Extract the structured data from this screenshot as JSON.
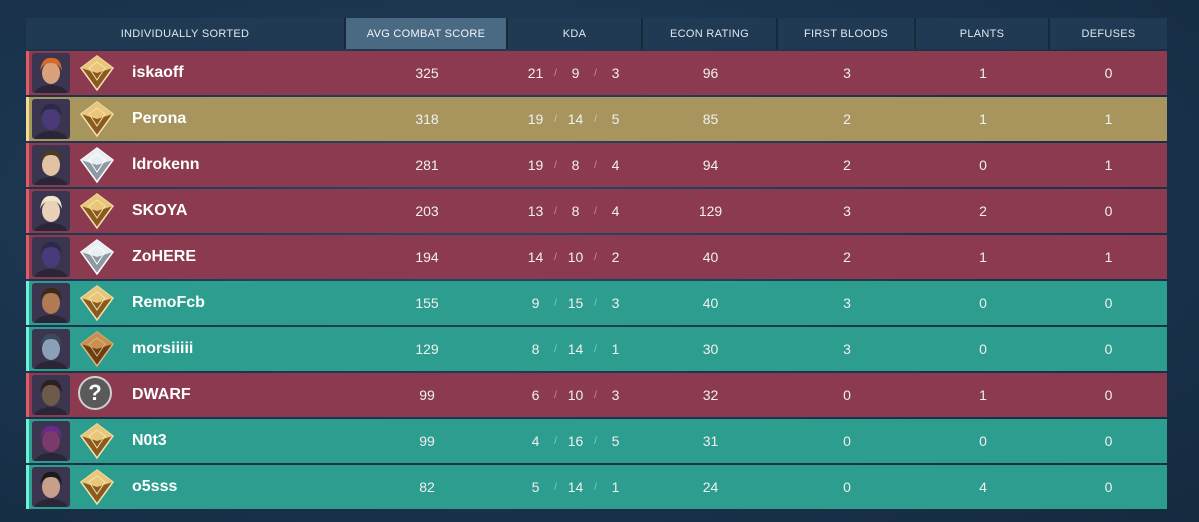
{
  "header": {
    "columns": [
      {
        "label": "INDIVIDUALLY SORTED"
      },
      {
        "label": "AVG COMBAT SCORE"
      },
      {
        "label": "KDA"
      },
      {
        "label": "ECON RATING"
      },
      {
        "label": "FIRST BLOODS"
      },
      {
        "label": "PLANTS"
      },
      {
        "label": "DEFUSES"
      }
    ],
    "active_column": "AVG COMBAT SCORE"
  },
  "colors": {
    "red_team": "#8c3a50",
    "green_team": "#2c9d8e",
    "highlight_player": "#a8955e"
  },
  "players": [
    {
      "name": "iskaoff",
      "team": "red",
      "rank_icon": "gold-rank-icon",
      "acs": "325",
      "k": "21",
      "d": "9",
      "a": "3",
      "econ": "96",
      "fb": "3",
      "plants": "1",
      "defuses": "0"
    },
    {
      "name": "Perona",
      "team": "gold",
      "rank_icon": "gold-rank-icon",
      "acs": "318",
      "k": "19",
      "d": "14",
      "a": "5",
      "econ": "85",
      "fb": "2",
      "plants": "1",
      "defuses": "1"
    },
    {
      "name": "ldrokenn",
      "team": "red",
      "rank_icon": "silver-rank-icon",
      "acs": "281",
      "k": "19",
      "d": "8",
      "a": "4",
      "econ": "94",
      "fb": "2",
      "plants": "0",
      "defuses": "1"
    },
    {
      "name": "SKOYA",
      "team": "red",
      "rank_icon": "gold-rank-icon",
      "acs": "203",
      "k": "13",
      "d": "8",
      "a": "4",
      "econ": "129",
      "fb": "3",
      "plants": "2",
      "defuses": "0"
    },
    {
      "name": "ZoHERE",
      "team": "red",
      "rank_icon": "silver-rank-icon",
      "acs": "194",
      "k": "14",
      "d": "10",
      "a": "2",
      "econ": "40",
      "fb": "2",
      "plants": "1",
      "defuses": "1"
    },
    {
      "name": "RemoFcb",
      "team": "green",
      "rank_icon": "gold-rank-icon",
      "acs": "155",
      "k": "9",
      "d": "15",
      "a": "3",
      "econ": "40",
      "fb": "3",
      "plants": "0",
      "defuses": "0"
    },
    {
      "name": "morsiiiii",
      "team": "green",
      "rank_icon": "bronze-rank-icon",
      "acs": "129",
      "k": "8",
      "d": "14",
      "a": "1",
      "econ": "30",
      "fb": "3",
      "plants": "0",
      "defuses": "0"
    },
    {
      "name": "DWARF",
      "team": "red",
      "rank_icon": "unranked-icon",
      "acs": "99",
      "k": "6",
      "d": "10",
      "a": "3",
      "econ": "32",
      "fb": "0",
      "plants": "1",
      "defuses": "0"
    },
    {
      "name": "N0t3",
      "team": "green",
      "rank_icon": "gold-rank-icon",
      "acs": "99",
      "k": "4",
      "d": "16",
      "a": "5",
      "econ": "31",
      "fb": "0",
      "plants": "0",
      "defuses": "0"
    },
    {
      "name": "o5sss",
      "team": "green",
      "rank_icon": "gold-rank-icon",
      "acs": "82",
      "k": "5",
      "d": "14",
      "a": "1",
      "econ": "24",
      "fb": "0",
      "plants": "4",
      "defuses": "0"
    }
  ]
}
